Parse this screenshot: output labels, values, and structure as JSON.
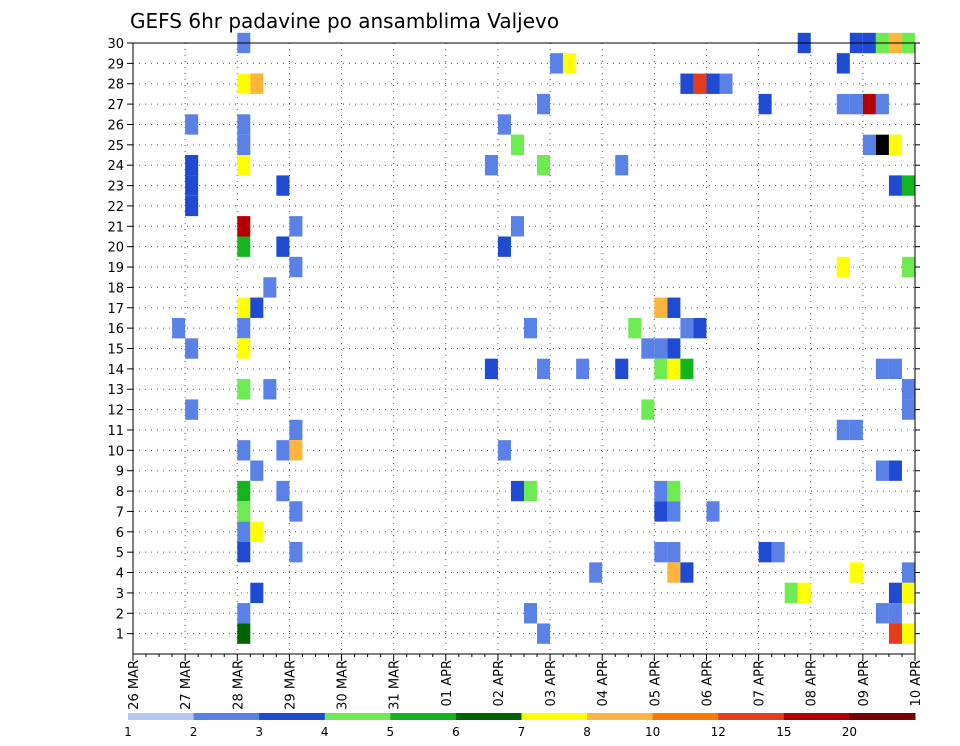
{
  "chart_data": {
    "type": "heatmap",
    "title": "GEFS 6hr padavine po ansamblima Valjevo",
    "xlabel": "",
    "ylabel": "",
    "x_tick_labels": [
      "26 MAR",
      "27 MAR",
      "28 MAR",
      "29 MAR",
      "30 MAR",
      "31 MAR",
      "01 APR",
      "02 APR",
      "03 APR",
      "04 APR",
      "05 APR",
      "06 APR",
      "07 APR",
      "08 APR",
      "09 APR",
      "10 APR"
    ],
    "y_tick_labels": [
      "1",
      "2",
      "3",
      "4",
      "5",
      "6",
      "7",
      "8",
      "9",
      "10",
      "11",
      "12",
      "13",
      "14",
      "15",
      "16",
      "17",
      "18",
      "19",
      "20",
      "21",
      "22",
      "23",
      "24",
      "25",
      "26",
      "27",
      "28",
      "29",
      "30"
    ],
    "x_unit": "6-hour step (4 per day) from 26 MAR 00Z",
    "x_range": [
      0,
      60
    ],
    "y_range": [
      0,
      30
    ],
    "grid": "dotted",
    "colorbar": {
      "labels": [
        "1",
        "2",
        "3",
        "4",
        "5",
        "6",
        "7",
        "8",
        "10",
        "12",
        "15",
        "20"
      ],
      "colors": [
        "#b4c8f5",
        "#5a82e6",
        "#1e4bd2",
        "#6eea52",
        "#14b41e",
        "#006400",
        "#ffff00",
        "#ffb43c",
        "#ff7800",
        "#e63c1e",
        "#b40000",
        "#780000"
      ]
    },
    "cells": [
      [
        9,
        30,
        1
      ],
      [
        52,
        30,
        2
      ],
      [
        56,
        30,
        2
      ],
      [
        57,
        30,
        2
      ],
      [
        58,
        30,
        3
      ],
      [
        59,
        30,
        7
      ],
      [
        60,
        30,
        3
      ],
      [
        33,
        29,
        1
      ],
      [
        34,
        29,
        6
      ],
      [
        55,
        29,
        2
      ],
      [
        9,
        28,
        6
      ],
      [
        10,
        28,
        7
      ],
      [
        43,
        28,
        2
      ],
      [
        44,
        28,
        9
      ],
      [
        45,
        28,
        2
      ],
      [
        46,
        28,
        1
      ],
      [
        32,
        27,
        1
      ],
      [
        49,
        27,
        2
      ],
      [
        55,
        27,
        1
      ],
      [
        56,
        27,
        1
      ],
      [
        57,
        27,
        10
      ],
      [
        58,
        27,
        1
      ],
      [
        5,
        26,
        1
      ],
      [
        9,
        26,
        1
      ],
      [
        29,
        26,
        1
      ],
      [
        9,
        25,
        1
      ],
      [
        30,
        25,
        3
      ],
      [
        57,
        25,
        1
      ],
      [
        58,
        25,
        14
      ],
      [
        59,
        25,
        6
      ],
      [
        5,
        24,
        2
      ],
      [
        9,
        24,
        6
      ],
      [
        28,
        24,
        1
      ],
      [
        32,
        24,
        3
      ],
      [
        38,
        24,
        1
      ],
      [
        5,
        23,
        2
      ],
      [
        12,
        23,
        2
      ],
      [
        59,
        23,
        2
      ],
      [
        60,
        23,
        4
      ],
      [
        5,
        22,
        2
      ],
      [
        9,
        21,
        10
      ],
      [
        13,
        21,
        1
      ],
      [
        30,
        21,
        1
      ],
      [
        9,
        20,
        4
      ],
      [
        12,
        20,
        2
      ],
      [
        29,
        20,
        2
      ],
      [
        13,
        19,
        1
      ],
      [
        55,
        19,
        6
      ],
      [
        60,
        19,
        3
      ],
      [
        11,
        18,
        1
      ],
      [
        9,
        17,
        6
      ],
      [
        10,
        17,
        2
      ],
      [
        41,
        17,
        7
      ],
      [
        42,
        17,
        2
      ],
      [
        4,
        16,
        1
      ],
      [
        9,
        16,
        1
      ],
      [
        31,
        16,
        1
      ],
      [
        39,
        16,
        3
      ],
      [
        43,
        16,
        1
      ],
      [
        44,
        16,
        2
      ],
      [
        5,
        15,
        1
      ],
      [
        9,
        15,
        6
      ],
      [
        40,
        15,
        1
      ],
      [
        41,
        15,
        1
      ],
      [
        42,
        15,
        2
      ],
      [
        28,
        14,
        2
      ],
      [
        32,
        14,
        1
      ],
      [
        35,
        14,
        1
      ],
      [
        38,
        14,
        2
      ],
      [
        41,
        14,
        3
      ],
      [
        42,
        14,
        6
      ],
      [
        43,
        14,
        4
      ],
      [
        58,
        14,
        1
      ],
      [
        59,
        14,
        1
      ],
      [
        9,
        13,
        3
      ],
      [
        11,
        13,
        1
      ],
      [
        60,
        13,
        1
      ],
      [
        5,
        12,
        1
      ],
      [
        40,
        12,
        3
      ],
      [
        13,
        11,
        1
      ],
      [
        55,
        11,
        1
      ],
      [
        56,
        11,
        1
      ],
      [
        9,
        10,
        1
      ],
      [
        12,
        10,
        1
      ],
      [
        13,
        10,
        7
      ],
      [
        29,
        10,
        1
      ],
      [
        10,
        9,
        1
      ],
      [
        58,
        9,
        1
      ],
      [
        59,
        9,
        2
      ],
      [
        9,
        8,
        4
      ],
      [
        12,
        8,
        1
      ],
      [
        30,
        8,
        2
      ],
      [
        31,
        8,
        3
      ],
      [
        41,
        8,
        1
      ],
      [
        42,
        8,
        3
      ],
      [
        9,
        7,
        3
      ],
      [
        13,
        7,
        1
      ],
      [
        41,
        7,
        2
      ],
      [
        42,
        7,
        1
      ],
      [
        45,
        7,
        1
      ],
      [
        9,
        6,
        1
      ],
      [
        10,
        6,
        6
      ],
      [
        9,
        5,
        2
      ],
      [
        13,
        5,
        1
      ],
      [
        41,
        5,
        1
      ],
      [
        42,
        5,
        1
      ],
      [
        49,
        5,
        2
      ],
      [
        50,
        5,
        1
      ],
      [
        36,
        4,
        1
      ],
      [
        42,
        4,
        7
      ],
      [
        43,
        4,
        2
      ],
      [
        56,
        4,
        6
      ],
      [
        10,
        3,
        2
      ],
      [
        51,
        3,
        3
      ],
      [
        52,
        3,
        6
      ],
      [
        59,
        3,
        2
      ],
      [
        60,
        3,
        6
      ],
      [
        9,
        2,
        1
      ],
      [
        31,
        2,
        1
      ],
      [
        58,
        2,
        1
      ],
      [
        59,
        2,
        1
      ],
      [
        9,
        1,
        5
      ],
      [
        32,
        1,
        1
      ],
      [
        59,
        1,
        9
      ],
      [
        60,
        1,
        6
      ],
      [
        60,
        4,
        1
      ],
      [
        60,
        12,
        1
      ]
    ]
  }
}
